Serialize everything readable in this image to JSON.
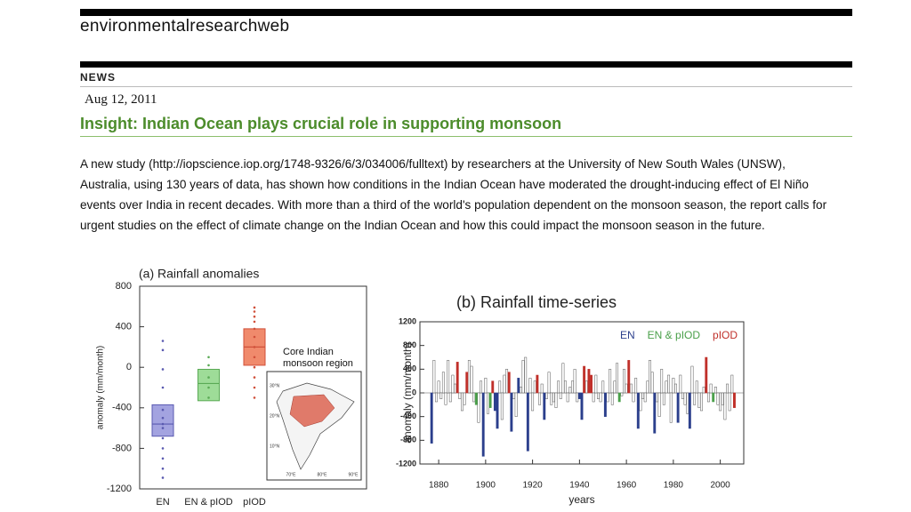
{
  "header": {
    "site": "environmentalresearchweb",
    "section": "NEWS"
  },
  "article": {
    "date": "Aug 12, 2011",
    "title": "Insight: Indian Ocean plays crucial role in supporting monsoon",
    "body": "A new study (http://iopscience.iop.org/1748-9326/6/3/034006/fulltext) by researchers at the University of New South Wales (UNSW), Australia, using 130 years of data, has shown how conditions in the Indian Ocean have moderated the drought-inducing effect of El Niño events over India in recent decades. With more than a third of the world's population dependent on the monsoon season, the report calls for urgent studies on the effect of climate change on the Indian Ocean and how this could impact the monsoon season in the future."
  },
  "chart_data": [
    {
      "type": "box",
      "title": "(a) Rainfall anomalies",
      "y_label": "anomaly (mm/month)",
      "categories": [
        "EN",
        "EN & pIOD",
        "pIOD"
      ],
      "q1": [
        -680,
        -330,
        20
      ],
      "median": [
        -560,
        -160,
        200
      ],
      "q3": [
        -370,
        -20,
        380
      ],
      "points": [
        [
          260,
          170,
          -20,
          -200,
          -420,
          -500,
          -560,
          -600,
          -700,
          -800,
          -900,
          -1000,
          -1090
        ],
        [
          100,
          20,
          -100,
          -200,
          -300
        ],
        [
          590,
          550,
          500,
          450,
          380,
          300,
          200,
          100,
          0,
          -100,
          -200,
          -300
        ]
      ],
      "colors": [
        "#a3a3e0",
        "#9edc98",
        "#f08a6c"
      ],
      "edgecolors": [
        "#5a5ab0",
        "#5aaa55",
        "#d0503a"
      ],
      "ylim": [
        -1200,
        800
      ],
      "yticks": [
        -1200,
        -800,
        -400,
        0,
        400,
        800
      ],
      "inset": {
        "label": [
          "Core Indian",
          "monsoon region"
        ],
        "lat_labels": [
          "30°N",
          "20°N",
          "10°N"
        ],
        "lon_labels": [
          "70°E",
          "80°E",
          "90°E"
        ]
      }
    },
    {
      "type": "bar",
      "title": "(b) Rainfall time-series",
      "y_label": "anomaly (mm/month)",
      "x_label": "years",
      "xlim": [
        1872,
        2010
      ],
      "xticks": [
        1880,
        1900,
        1920,
        1940,
        1960,
        1980,
        2000
      ],
      "ylim": [
        -1200,
        1200
      ],
      "yticks": [
        -1200,
        -800,
        -400,
        0,
        400,
        800,
        1200
      ],
      "edgecolor": "#555555",
      "series": [
        {
          "color": "#ffffff",
          "x": [
            1878,
            1879,
            1880,
            1881,
            1882,
            1883,
            1884,
            1885,
            1886,
            1887,
            1889,
            1890,
            1891,
            1893,
            1894,
            1895,
            1897,
            1898,
            1900,
            1901,
            1906,
            1907,
            1908,
            1909,
            1912,
            1913,
            1915,
            1916,
            1917,
            1919,
            1920,
            1921,
            1923,
            1924,
            1926,
            1927,
            1928,
            1929,
            1930,
            1931,
            1932,
            1933,
            1934,
            1935,
            1936,
            1937,
            1938,
            1939,
            1943,
            1946,
            1947,
            1948,
            1949,
            1950,
            1952,
            1953,
            1954,
            1955,
            1956,
            1958,
            1959,
            1960,
            1962,
            1963,
            1964,
            1966,
            1967,
            1968,
            1969,
            1970,
            1971,
            1973,
            1974,
            1975,
            1976,
            1977,
            1978,
            1979,
            1980,
            1981,
            1983,
            1984,
            1985,
            1986,
            1988,
            1989,
            1990,
            1991,
            1992,
            1993,
            1995,
            1996,
            1998,
            1999,
            2000,
            2001,
            2002,
            2003,
            2004,
            2005
          ],
          "values": [
            550,
            -150,
            200,
            -100,
            350,
            -200,
            550,
            -150,
            300,
            150,
            -100,
            -300,
            -200,
            550,
            450,
            -150,
            -500,
            200,
            250,
            -350,
            200,
            -450,
            300,
            400,
            -100,
            -400,
            100,
            550,
            600,
            250,
            -300,
            200,
            -200,
            150,
            -100,
            350,
            -200,
            -150,
            -250,
            200,
            -100,
            500,
            200,
            -150,
            100,
            200,
            400,
            -150,
            200,
            -150,
            300,
            -100,
            -150,
            200,
            -150,
            400,
            -200,
            200,
            500,
            -50,
            400,
            150,
            150,
            -150,
            250,
            -300,
            -100,
            -150,
            200,
            550,
            350,
            -150,
            -400,
            400,
            -200,
            200,
            300,
            -500,
            250,
            150,
            300,
            -100,
            -200,
            -350,
            450,
            -200,
            200,
            -250,
            -300,
            100,
            -150,
            150,
            100,
            -200,
            -300,
            -200,
            -450,
            150,
            -300,
            300
          ]
        },
        {
          "name": "EN",
          "color": "#2b3f8c",
          "x": [
            1877,
            1899,
            1904,
            1905,
            1911,
            1914,
            1918,
            1925,
            1940,
            1941,
            1951,
            1965,
            1972,
            1982,
            1987
          ],
          "values": [
            -850,
            -1070,
            -300,
            -600,
            -650,
            250,
            -980,
            -450,
            -100,
            -450,
            -400,
            -600,
            -680,
            -500,
            -600
          ]
        },
        {
          "name": "EN & pIOD",
          "color": "#4aa04a",
          "x": [
            1896,
            1902,
            1957,
            1997
          ],
          "values": [
            -200,
            -250,
            -150,
            -150
          ]
        },
        {
          "name": "pIOD",
          "color": "#c0302a",
          "x": [
            1888,
            1892,
            1903,
            1910,
            1922,
            1942,
            1944,
            1945,
            1961,
            1994,
            2006
          ],
          "values": [
            520,
            350,
            200,
            350,
            300,
            450,
            400,
            300,
            550,
            600,
            -250
          ]
        }
      ]
    }
  ]
}
